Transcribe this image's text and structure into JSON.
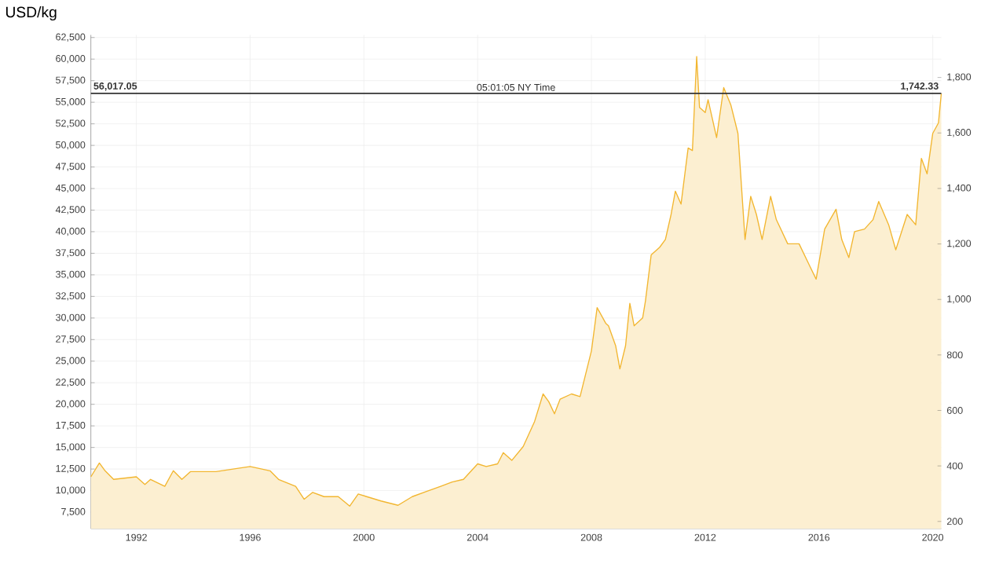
{
  "chart_data": {
    "type": "area",
    "ylabel": "USD/kg",
    "annotations": [
      "05:01:05 NY Time",
      "1,742.33"
    ],
    "x": [
      1990.4,
      1990.7,
      1990.9,
      1991.2,
      1992.0,
      1992.3,
      1992.5,
      1993.0,
      1993.3,
      1993.6,
      1993.9,
      1994.8,
      1996.0,
      1996.7,
      1997.0,
      1997.6,
      1997.9,
      1998.2,
      1998.6,
      1999.1,
      1999.5,
      1999.8,
      2000.1,
      2000.6,
      2001.2,
      2001.7,
      2002.2,
      2002.7,
      2003.1,
      2003.5,
      2004.0,
      2004.3,
      2004.7,
      2004.9,
      2005.2,
      2005.6,
      2006.0,
      2006.3,
      2006.5,
      2006.7,
      2006.9,
      2007.3,
      2007.6,
      2008.0,
      2008.2,
      2008.5,
      2008.6,
      2008.85,
      2009.0,
      2009.2,
      2009.35,
      2009.5,
      2009.8,
      2009.9,
      2010.1,
      2010.4,
      2010.6,
      2010.8,
      2010.95,
      2011.15,
      2011.4,
      2011.55,
      2011.7,
      2011.8,
      2012.0,
      2012.1,
      2012.4,
      2012.65,
      2012.9,
      2013.15,
      2013.4,
      2013.6,
      2013.8,
      2014.0,
      2014.3,
      2014.5,
      2014.9,
      2015.3,
      2015.65,
      2015.9,
      2016.2,
      2016.6,
      2016.8,
      2017.05,
      2017.25,
      2017.6,
      2017.9,
      2018.1,
      2018.45,
      2018.7,
      2019.1,
      2019.4,
      2019.6,
      2019.8,
      2020.0,
      2020.2,
      2020.3
    ],
    "values": [
      11600,
      13200,
      12300,
      11300,
      11600,
      10700,
      11300,
      10500,
      12300,
      11300,
      12200,
      12200,
      12800,
      12300,
      11300,
      10500,
      9000,
      9800,
      9300,
      9300,
      8200,
      9600,
      9300,
      8800,
      8300,
      9300,
      9900,
      10500,
      11000,
      11300,
      13100,
      12800,
      13100,
      14400,
      13500,
      15100,
      18000,
      21200,
      20300,
      18900,
      20600,
      21200,
      20900,
      26200,
      31200,
      29400,
      29100,
      26800,
      24100,
      26800,
      31700,
      29100,
      30000,
      32000,
      37300,
      38200,
      39100,
      42000,
      44700,
      43200,
      49700,
      49400,
      60300,
      54400,
      53800,
      55300,
      50900,
      56700,
      54700,
      51400,
      39100,
      44100,
      42000,
      39100,
      44100,
      41400,
      38600,
      38600,
      36200,
      34500,
      40300,
      42600,
      39100,
      37000,
      40000,
      40300,
      41400,
      43500,
      40800,
      37900,
      42000,
      40800,
      48500,
      46700,
      51400,
      52600,
      56000
    ],
    "color": "#f2b630",
    "xlim": [
      1990.4,
      2020.3
    ],
    "xticks": [
      1992,
      1996,
      2000,
      2004,
      2008,
      2012,
      2016,
      2020
    ],
    "ylim": [
      5600,
      62800
    ],
    "yticks": [
      {
        "value": 7500,
        "label": "7,500"
      },
      {
        "value": 10000,
        "label": "10,000"
      },
      {
        "value": 12500,
        "label": "12,500"
      },
      {
        "value": 15000,
        "label": "15,000"
      },
      {
        "value": 17500,
        "label": "17,500"
      },
      {
        "value": 20000,
        "label": "20,000"
      },
      {
        "value": 22500,
        "label": "22,500"
      },
      {
        "value": 25000,
        "label": "25,000"
      },
      {
        "value": 27500,
        "label": "27,500"
      },
      {
        "value": 30000,
        "label": "30,000"
      },
      {
        "value": 32500,
        "label": "32,500"
      },
      {
        "value": 35000,
        "label": "35,000"
      },
      {
        "value": 37500,
        "label": "37,500"
      },
      {
        "value": 40000,
        "label": "40,000"
      },
      {
        "value": 42500,
        "label": "42,500"
      },
      {
        "value": 45000,
        "label": "45,000"
      },
      {
        "value": 47500,
        "label": "47,500"
      },
      {
        "value": 50000,
        "label": "50,000"
      },
      {
        "value": 52500,
        "label": "52,500"
      },
      {
        "value": 55000,
        "label": "55,000"
      },
      {
        "value": 57500,
        "label": "57,500"
      },
      {
        "value": 60000,
        "label": "60,000"
      },
      {
        "value": 62500,
        "label": "62,500"
      }
    ],
    "y2lim": [
      174.2,
      1953.3
    ],
    "y2ticks": [
      200,
      400,
      600,
      800,
      {
        "value": 1000,
        "label": "1,000"
      },
      {
        "value": 1200,
        "label": "1,200"
      },
      {
        "value": 1400,
        "label": "1,400"
      },
      {
        "value": 1600,
        "label": "1,600"
      },
      {
        "value": 1800,
        "label": "1,800"
      }
    ],
    "ref_lines": [
      {
        "axis": "y",
        "value": 56017.05,
        "label": "56,017.05",
        "color": "#333333"
      }
    ],
    "grid": true
  }
}
